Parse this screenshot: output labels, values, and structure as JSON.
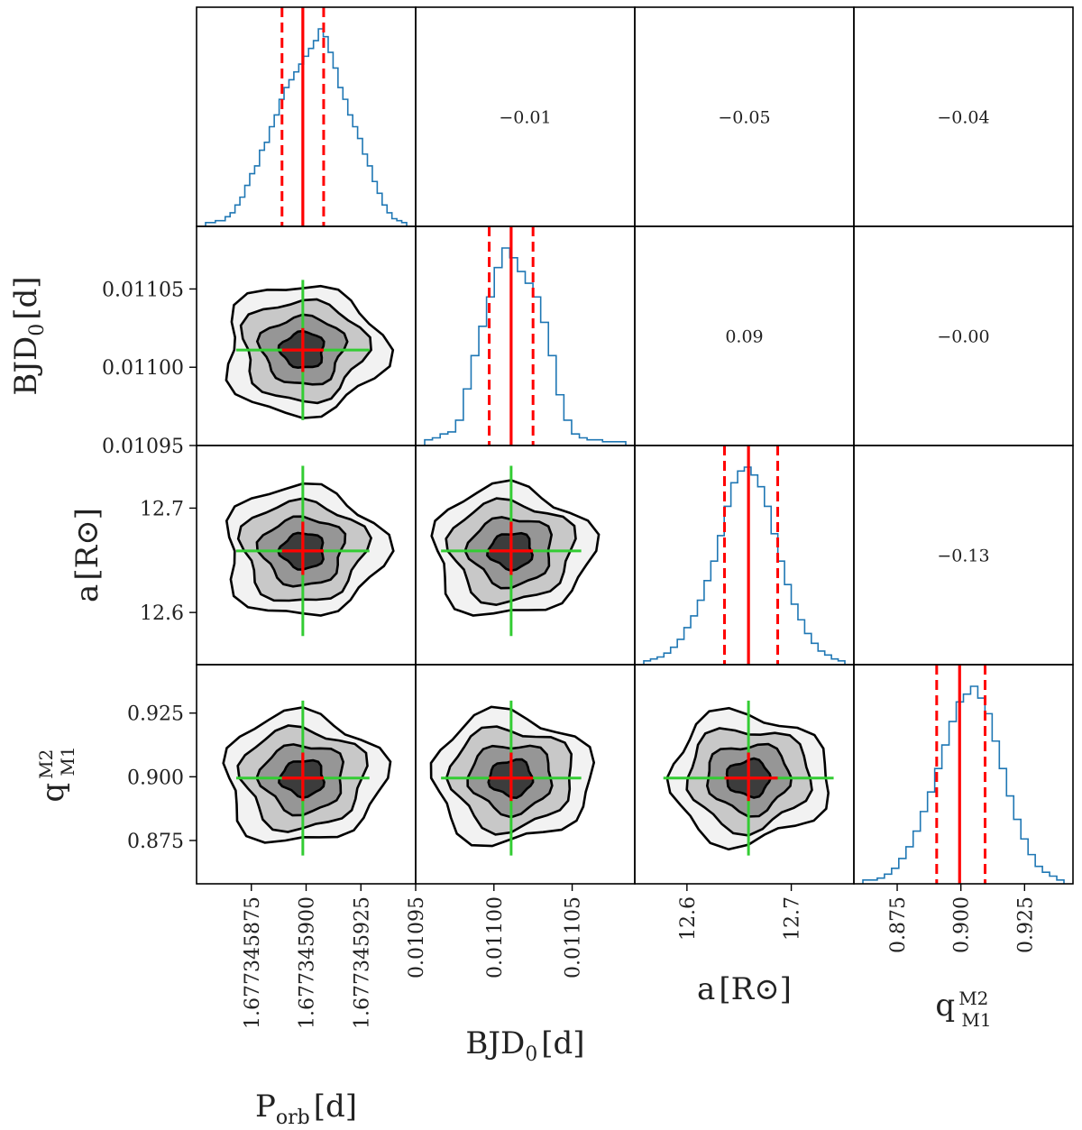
{
  "chart_data": {
    "type": "corner",
    "parameters": [
      {
        "id": "porb",
        "label_main": "P",
        "label_sub": "orb",
        "label_unit": "[d]",
        "ticks": [
          "1.677345875",
          "1.677345900",
          "1.677345925"
        ],
        "tick_values": [
          1.677345875,
          1.6773459,
          1.677345925
        ],
        "range": [
          1.67734585,
          1.67734595
        ],
        "median": 1.6773458985,
        "lo": 1.677345889,
        "hi": 1.677345908
      },
      {
        "id": "bjd0",
        "label_main": "BJD",
        "label_sub": "0",
        "label_unit": "[d]",
        "ticks": [
          "0.01095",
          "0.01100",
          "0.01105"
        ],
        "tick_values": [
          0.01095,
          0.011,
          0.01105
        ],
        "range": [
          0.01095,
          0.01109
        ],
        "median": 0.011011,
        "lo": 0.010997,
        "hi": 0.011025
      },
      {
        "id": "a",
        "label_main": "a",
        "label_sub": "",
        "label_unit": "[R⊙]",
        "ticks": [
          "12.6",
          "12.7"
        ],
        "tick_values": [
          12.6,
          12.7
        ],
        "range": [
          12.55,
          12.76
        ],
        "median": 12.659,
        "lo": 12.636,
        "hi": 12.687
      },
      {
        "id": "q",
        "label_main": "q",
        "label_frac_num": "M2",
        "label_frac_den": "M1",
        "label_unit": "",
        "ticks": [
          "0.875",
          "0.900",
          "0.925"
        ],
        "tick_values": [
          0.875,
          0.9,
          0.925
        ],
        "range": [
          0.858,
          0.944
        ],
        "median": 0.8995,
        "lo": 0.8905,
        "hi": 0.9095
      }
    ],
    "correlations": [
      {
        "row": 0,
        "col": 1,
        "value": "−0.01"
      },
      {
        "row": 0,
        "col": 2,
        "value": "−0.05"
      },
      {
        "row": 0,
        "col": 3,
        "value": "−0.04"
      },
      {
        "row": 1,
        "col": 2,
        "value": "0.09"
      },
      {
        "row": 1,
        "col": 3,
        "value": "−0.00"
      },
      {
        "row": 2,
        "col": 3,
        "value": "−0.13"
      }
    ],
    "histograms": [
      [
        0.01,
        0.01,
        0.02,
        0.02,
        0.04,
        0.06,
        0.1,
        0.14,
        0.2,
        0.26,
        0.3,
        0.38,
        0.42,
        0.5,
        0.56,
        0.64,
        0.7,
        0.74,
        0.78,
        0.82,
        0.86,
        0.9,
        0.94,
        1.0,
        0.96,
        0.88,
        0.8,
        0.7,
        0.64,
        0.56,
        0.5,
        0.44,
        0.36,
        0.3,
        0.22,
        0.16,
        0.1,
        0.06,
        0.03,
        0.02,
        0.01
      ],
      [
        0.02,
        0.03,
        0.05,
        0.06,
        0.12,
        0.28,
        0.45,
        0.6,
        0.75,
        0.9,
        1.0,
        0.95,
        0.88,
        0.82,
        0.75,
        0.62,
        0.45,
        0.25,
        0.12,
        0.05,
        0.03,
        0.02,
        0.02,
        0.01,
        0.01,
        0.01
      ],
      [
        0.01,
        0.02,
        0.03,
        0.05,
        0.08,
        0.12,
        0.18,
        0.24,
        0.32,
        0.42,
        0.52,
        0.65,
        0.8,
        0.92,
        0.98,
        1.0,
        0.96,
        0.9,
        0.8,
        0.66,
        0.52,
        0.4,
        0.3,
        0.22,
        0.15,
        0.1,
        0.06,
        0.04,
        0.02,
        0.01
      ],
      [
        0.01,
        0.01,
        0.02,
        0.04,
        0.07,
        0.12,
        0.18,
        0.26,
        0.36,
        0.46,
        0.58,
        0.7,
        0.82,
        0.92,
        0.96,
        1.0,
        0.94,
        0.86,
        0.72,
        0.58,
        0.44,
        0.32,
        0.22,
        0.14,
        0.08,
        0.05,
        0.03,
        0.01
      ]
    ]
  }
}
